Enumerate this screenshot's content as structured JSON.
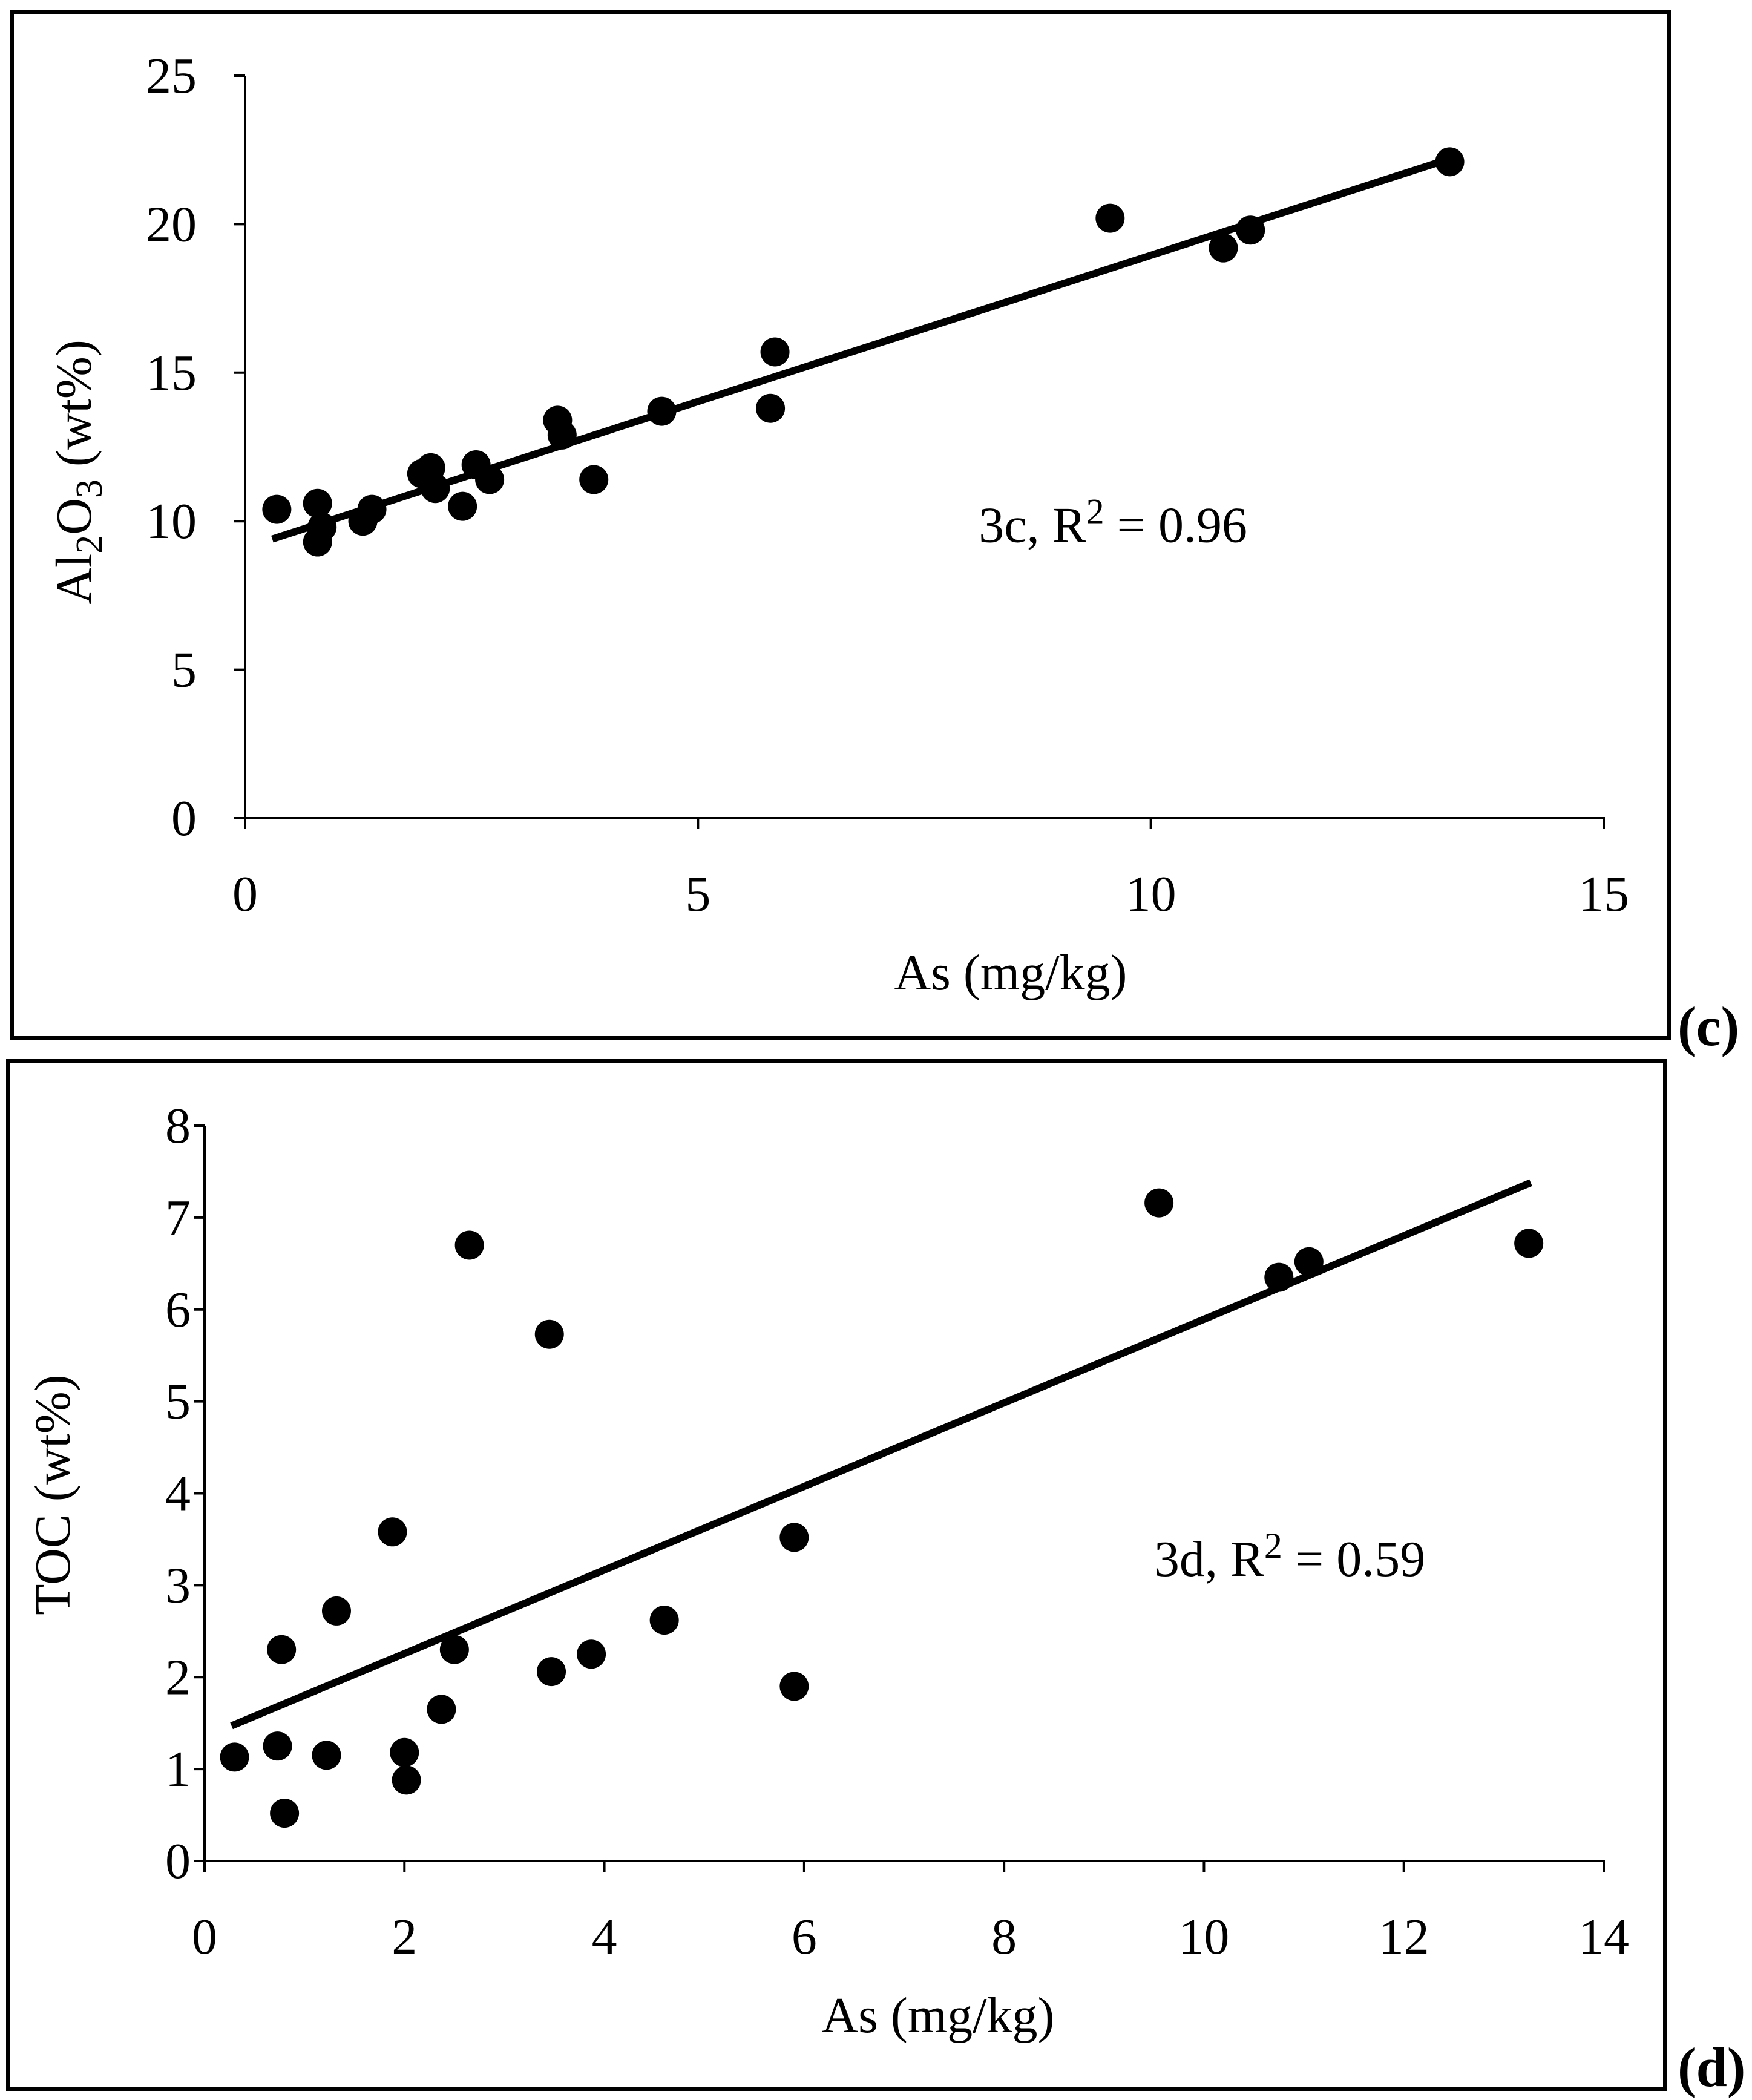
{
  "chart_data": [
    {
      "panel": "(c)",
      "type": "scatter",
      "xlabel": "As (mg/kg)",
      "ylabel": "Al2O3 (wt%)",
      "ylabel_parts": {
        "a": "Al",
        "s1": "2",
        "b": "O",
        "s2": "3",
        "c": " (wt%)"
      },
      "xlim": [
        0,
        15
      ],
      "ylim": [
        0,
        25
      ],
      "xticks": [
        0,
        5,
        10,
        15
      ],
      "yticks": [
        0,
        5,
        10,
        15,
        20,
        25
      ],
      "annotation": {
        "text": "3c, R",
        "sup": "2",
        "rest": " = 0.96",
        "x": 8.1,
        "y": 9.3
      },
      "points": [
        {
          "x": 0.35,
          "y": 10.4
        },
        {
          "x": 0.8,
          "y": 10.6
        },
        {
          "x": 0.85,
          "y": 9.8
        },
        {
          "x": 0.8,
          "y": 9.3
        },
        {
          "x": 1.3,
          "y": 10.0
        },
        {
          "x": 1.4,
          "y": 10.4
        },
        {
          "x": 1.95,
          "y": 11.6
        },
        {
          "x": 2.05,
          "y": 11.8
        },
        {
          "x": 2.1,
          "y": 11.1
        },
        {
          "x": 2.4,
          "y": 10.5
        },
        {
          "x": 2.55,
          "y": 11.9
        },
        {
          "x": 2.7,
          "y": 11.4
        },
        {
          "x": 3.45,
          "y": 13.4
        },
        {
          "x": 3.5,
          "y": 12.9
        },
        {
          "x": 3.85,
          "y": 11.4
        },
        {
          "x": 4.6,
          "y": 13.7
        },
        {
          "x": 5.8,
          "y": 13.8
        },
        {
          "x": 5.85,
          "y": 15.7
        },
        {
          "x": 9.55,
          "y": 20.2
        },
        {
          "x": 10.8,
          "y": 19.2
        },
        {
          "x": 11.1,
          "y": 19.8
        },
        {
          "x": 13.3,
          "y": 22.1
        }
      ],
      "trendline": {
        "x1": 0.3,
        "y1": 9.4,
        "x2": 13.3,
        "y2": 22.2
      }
    },
    {
      "panel": "(d)",
      "type": "scatter",
      "xlabel": "As (mg/kg)",
      "ylabel": "TOC (wt%)",
      "xlim": [
        0,
        14
      ],
      "ylim": [
        0,
        8
      ],
      "xticks": [
        0,
        2,
        4,
        6,
        8,
        10,
        12,
        14
      ],
      "yticks": [
        0,
        1,
        2,
        3,
        4,
        5,
        6,
        7,
        8
      ],
      "annotation": {
        "text": "3d, R",
        "sup": "2",
        "rest": " = 0.59",
        "x": 9.5,
        "y": 3.1
      },
      "points": [
        {
          "x": 0.3,
          "y": 1.13
        },
        {
          "x": 0.73,
          "y": 1.25
        },
        {
          "x": 0.77,
          "y": 2.3
        },
        {
          "x": 0.8,
          "y": 0.52
        },
        {
          "x": 1.22,
          "y": 1.15
        },
        {
          "x": 1.32,
          "y": 2.72
        },
        {
          "x": 1.88,
          "y": 3.58
        },
        {
          "x": 2.0,
          "y": 1.18
        },
        {
          "x": 2.02,
          "y": 0.88
        },
        {
          "x": 2.37,
          "y": 1.65
        },
        {
          "x": 2.5,
          "y": 2.3
        },
        {
          "x": 2.65,
          "y": 6.7
        },
        {
          "x": 3.45,
          "y": 5.73
        },
        {
          "x": 3.47,
          "y": 2.06
        },
        {
          "x": 3.87,
          "y": 2.25
        },
        {
          "x": 4.6,
          "y": 2.62
        },
        {
          "x": 5.9,
          "y": 1.9
        },
        {
          "x": 5.9,
          "y": 3.52
        },
        {
          "x": 9.55,
          "y": 7.16
        },
        {
          "x": 10.75,
          "y": 6.35
        },
        {
          "x": 11.05,
          "y": 6.52
        },
        {
          "x": 13.25,
          "y": 6.72
        }
      ],
      "trendline": {
        "x1": 0.27,
        "y1": 1.47,
        "x2": 13.27,
        "y2": 7.38
      }
    }
  ]
}
